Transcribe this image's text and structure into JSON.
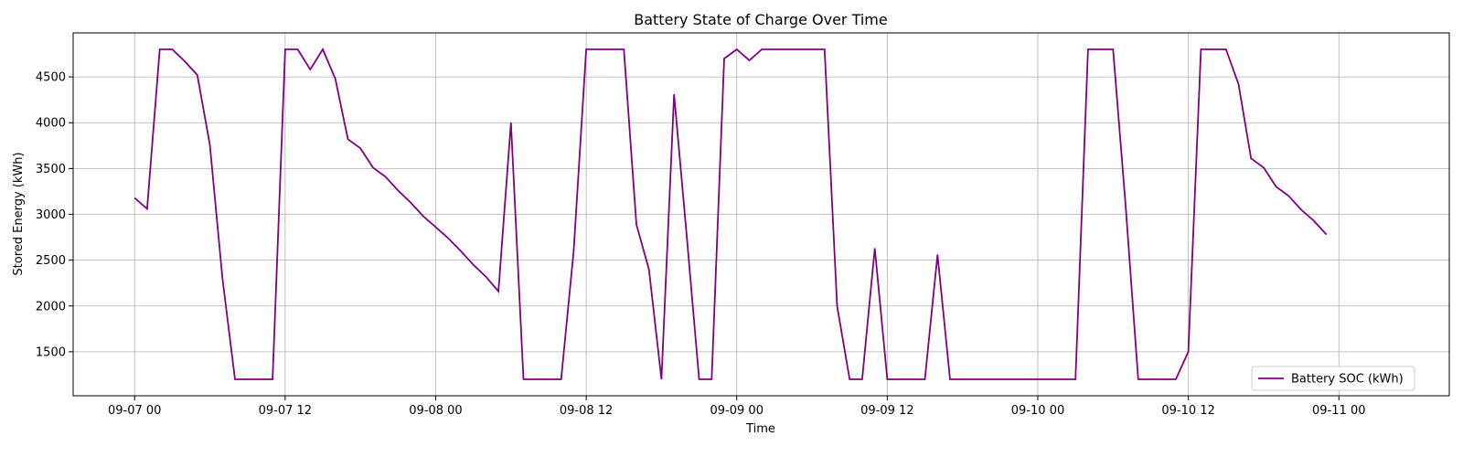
{
  "chart_data": {
    "type": "line",
    "title": "Battery State of Charge Over Time",
    "xlabel": "Time",
    "ylabel": "Stored Energy (kWh)",
    "x_tick_labels": [
      "09-07 00",
      "09-07 12",
      "09-08 00",
      "09-08 12",
      "09-09 00",
      "09-09 12",
      "09-10 00",
      "09-10 12",
      "09-11 00"
    ],
    "y_ticks": [
      1500,
      2000,
      2500,
      3000,
      3500,
      4000,
      4500
    ],
    "xlim_hours": [
      -4.9,
      104.8
    ],
    "ylim": [
      1020,
      4980
    ],
    "grid": true,
    "legend_position": "lower-right",
    "x_unit": "hours since 09-07 00:00",
    "series": [
      {
        "name": "Battery SOC (kWh)",
        "color": "#800080",
        "x": [
          0,
          1,
          2,
          3,
          4,
          5,
          6,
          7,
          8,
          9,
          10,
          11,
          12,
          13,
          14,
          15,
          16,
          17,
          18,
          19,
          20,
          21,
          22,
          23,
          24,
          25,
          26,
          27,
          28,
          29,
          30,
          31,
          32,
          33,
          34,
          35,
          36,
          37,
          38,
          39,
          40,
          41,
          42,
          43,
          44,
          45,
          46,
          47,
          48,
          49,
          50,
          51,
          52,
          53,
          54,
          55,
          56,
          57,
          58,
          59,
          60,
          61,
          62,
          63,
          64,
          65,
          66,
          67,
          68,
          69,
          70,
          71,
          72,
          73,
          74,
          75,
          76,
          77,
          78,
          79,
          80,
          81,
          82,
          83,
          84,
          85,
          86,
          87,
          88,
          89,
          90,
          91,
          92,
          93,
          94,
          95
        ],
        "values": [
          3180,
          3060,
          4800,
          4800,
          4670,
          4520,
          3760,
          2300,
          1200,
          1200,
          1200,
          1200,
          4800,
          4800,
          4580,
          4800,
          4480,
          3820,
          3720,
          3510,
          3410,
          3260,
          3130,
          2980,
          2860,
          2740,
          2600,
          2450,
          2320,
          2160,
          4000,
          1200,
          1200,
          1200,
          1200,
          2600,
          4800,
          4800,
          4800,
          4800,
          2890,
          2400,
          1200,
          4310,
          2780,
          1200,
          1200,
          4700,
          4800,
          4680,
          4800,
          4800,
          4800,
          4800,
          4800,
          4800,
          2000,
          1200,
          1200,
          2630,
          1200,
          1200,
          1200,
          1200,
          2560,
          1200,
          1200,
          1200,
          1200,
          1200,
          1200,
          1200,
          1200,
          1200,
          1200,
          1200,
          4800,
          4800,
          4800,
          3100,
          1200,
          1200,
          1200,
          1200,
          1500,
          4800,
          4800,
          4800,
          4420,
          3610,
          3510,
          3300,
          3200,
          3050,
          2930,
          2780
        ]
      }
    ]
  }
}
